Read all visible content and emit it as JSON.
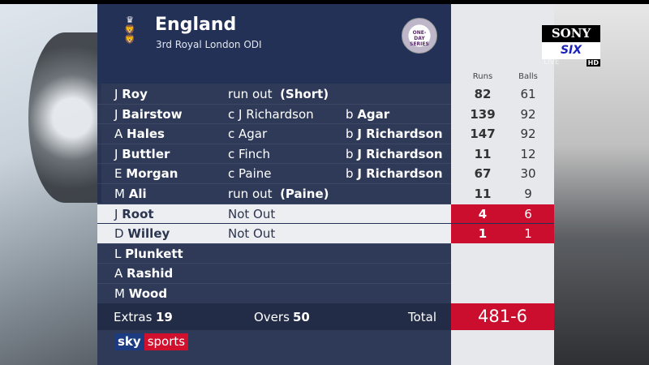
{
  "header": {
    "team": "England",
    "match": "3rd Royal London ODI",
    "series_badge": "ONE-DAY SERIES"
  },
  "columns": {
    "runs": "Runs",
    "balls": "Balls"
  },
  "batting": [
    {
      "initial": "J",
      "surname": "Roy",
      "how": "run out",
      "how_bold": "(Short)",
      "bowler_prefix": "",
      "bowler": "",
      "runs": "82",
      "balls": "61",
      "highlight": false
    },
    {
      "initial": "J",
      "surname": "Bairstow",
      "how": "c J Richardson",
      "how_bold": "",
      "bowler_prefix": "b",
      "bowler": "Agar",
      "runs": "139",
      "balls": "92",
      "highlight": false
    },
    {
      "initial": "A",
      "surname": "Hales",
      "how": "c Agar",
      "how_bold": "",
      "bowler_prefix": "b",
      "bowler": "J Richardson",
      "runs": "147",
      "balls": "92",
      "highlight": false
    },
    {
      "initial": "J",
      "surname": "Buttler",
      "how": "c Finch",
      "how_bold": "",
      "bowler_prefix": "b",
      "bowler": "J Richardson",
      "runs": "11",
      "balls": "12",
      "highlight": false
    },
    {
      "initial": "E",
      "surname": "Morgan",
      "how": "c Paine",
      "how_bold": "",
      "bowler_prefix": "b",
      "bowler": "J Richardson",
      "runs": "67",
      "balls": "30",
      "highlight": false
    },
    {
      "initial": "M",
      "surname": "Ali",
      "how": "run out",
      "how_bold": "(Paine)",
      "bowler_prefix": "",
      "bowler": "",
      "runs": "11",
      "balls": "9",
      "highlight": false
    },
    {
      "initial": "J",
      "surname": "Root",
      "how": "Not Out",
      "how_bold": "",
      "bowler_prefix": "",
      "bowler": "",
      "runs": "4",
      "balls": "6",
      "highlight": true
    },
    {
      "initial": "D",
      "surname": "Willey",
      "how": "Not Out",
      "how_bold": "",
      "bowler_prefix": "",
      "bowler": "",
      "runs": "1",
      "balls": "1",
      "highlight": true
    },
    {
      "initial": "L",
      "surname": "Plunkett",
      "how": "",
      "how_bold": "",
      "bowler_prefix": "",
      "bowler": "",
      "runs": "",
      "balls": "",
      "highlight": false
    },
    {
      "initial": "A",
      "surname": "Rashid",
      "how": "",
      "how_bold": "",
      "bowler_prefix": "",
      "bowler": "",
      "runs": "",
      "balls": "",
      "highlight": false
    },
    {
      "initial": "M",
      "surname": "Wood",
      "how": "",
      "how_bold": "",
      "bowler_prefix": "",
      "bowler": "",
      "runs": "",
      "balls": "",
      "highlight": false
    }
  ],
  "footer": {
    "extras_label": "Extras",
    "extras": "19",
    "overs_label": "Overs",
    "overs": "50",
    "total_label": "Total",
    "total": "481-6"
  },
  "branding": {
    "sky_a": "sky",
    "sky_b": "sports",
    "sony": "SONY",
    "six": "SIX",
    "live": "LIVE",
    "hd": "HD"
  },
  "colors": {
    "navy": "#243157",
    "red": "#cc0e2e",
    "light": "#eceef1"
  }
}
